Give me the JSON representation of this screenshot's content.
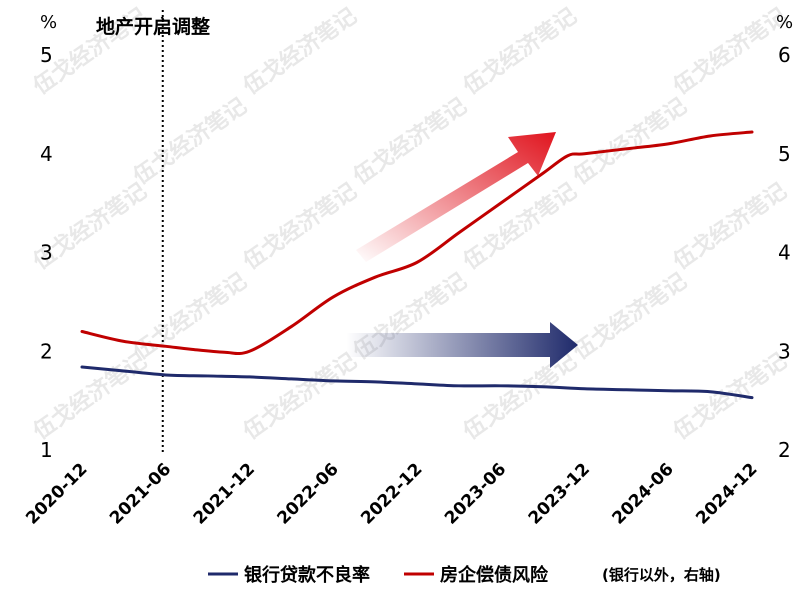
{
  "watermark": "伍戈经济笔记",
  "chart_data": {
    "type": "line",
    "title": "",
    "x": [
      "2020-12",
      "2021-06",
      "2021-12",
      "2022-06",
      "2022-12",
      "2023-06",
      "2023-12",
      "2024-06",
      "2024-12"
    ],
    "left_axis": {
      "unit": "%",
      "ylim": [
        1,
        5
      ],
      "ticks": [
        "1",
        "2",
        "3",
        "4",
        "5"
      ]
    },
    "right_axis": {
      "unit": "%",
      "ylim": [
        2,
        6
      ],
      "ticks": [
        "2",
        "3",
        "4",
        "5",
        "6"
      ]
    },
    "series": [
      {
        "name": "银行贷款不良率",
        "axis": "left",
        "color": "#1f2a6b",
        "x": [
          0,
          0.5,
          1,
          1.5,
          2,
          2.5,
          3,
          3.5,
          4,
          4.5,
          5,
          5.5,
          6,
          6.5,
          7,
          7.5,
          8
        ],
        "values": [
          1.84,
          1.8,
          1.76,
          1.75,
          1.74,
          1.72,
          1.7,
          1.69,
          1.67,
          1.65,
          1.65,
          1.64,
          1.62,
          1.61,
          1.6,
          1.59,
          1.53
        ]
      },
      {
        "name": "房企偿债风险",
        "axis": "right",
        "color": "#c00000",
        "x": [
          0,
          0.5,
          1,
          1.3,
          1.7,
          2,
          2.5,
          3,
          3.5,
          4,
          4.5,
          5,
          5.5,
          5.8,
          6,
          6.5,
          7,
          7.5,
          8
        ],
        "values": [
          3.2,
          3.1,
          3.05,
          3.02,
          2.99,
          3.0,
          3.25,
          3.55,
          3.75,
          3.9,
          4.2,
          4.5,
          4.8,
          4.98,
          5.0,
          5.05,
          5.1,
          5.18,
          5.22
        ]
      }
    ],
    "annotations": [
      {
        "type": "vline",
        "x": 1,
        "label": "地产开启调整",
        "style": "dotted"
      },
      {
        "type": "arrow",
        "color": "#e0141e",
        "direction": "up-right"
      },
      {
        "type": "arrow",
        "color": "#1f2a6b",
        "direction": "right"
      }
    ],
    "legend": {
      "position": "bottom-right",
      "entries": [
        {
          "label": "银行贷款不良率",
          "color": "#1f2a6b"
        },
        {
          "label": "房企偿债风险",
          "note": "(银行以外，右轴)",
          "color": "#c00000"
        }
      ]
    },
    "grid": false
  }
}
